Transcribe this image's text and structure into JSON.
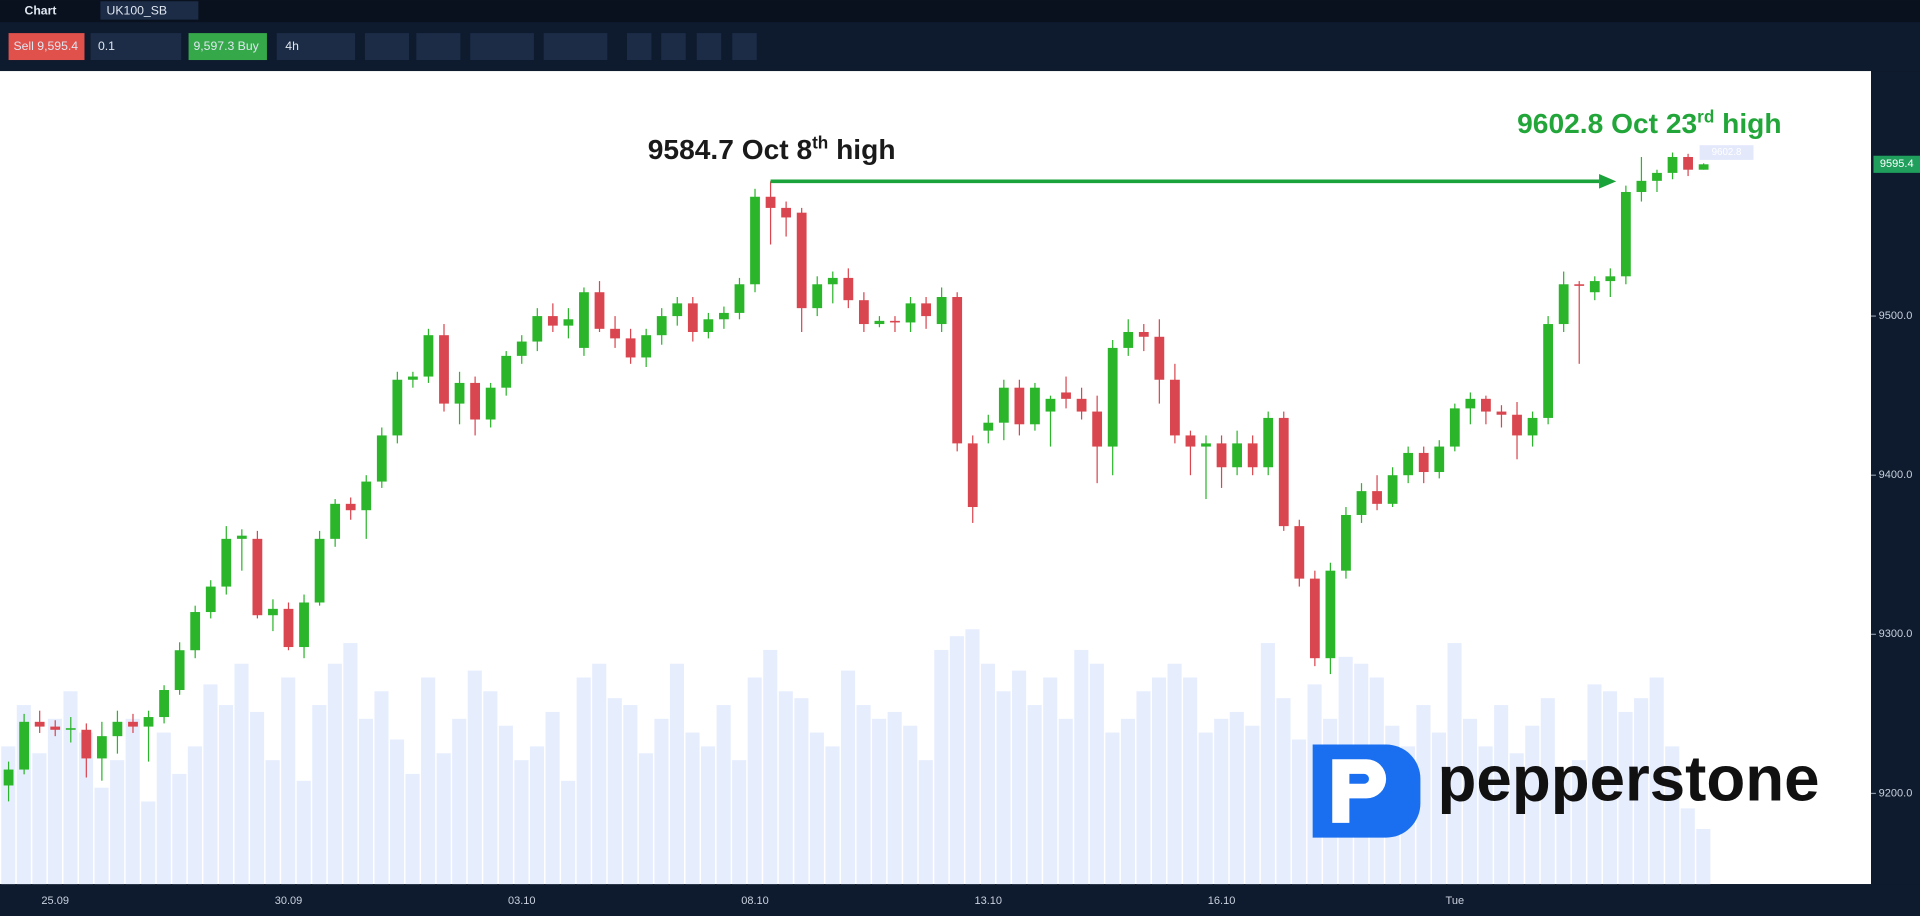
{
  "toolbar": {
    "tab": "Chart",
    "symbol": "UK100_SB",
    "sell": "Sell 9,595.4",
    "quantity": "0.1",
    "buy": "9,597.3 Buy",
    "timeframe": "4h"
  },
  "chart_data": {
    "type": "candlestick",
    "up_color": "#2bb52b",
    "down_color": "#d9464f",
    "volume_color": "#e6edfd",
    "categories": [
      null,
      null,
      null,
      "25.09",
      null,
      null,
      null,
      null,
      null,
      null,
      null,
      null,
      null,
      null,
      null,
      null,
      null,
      null,
      "30.09",
      null,
      null,
      null,
      null,
      null,
      null,
      null,
      null,
      null,
      null,
      null,
      null,
      null,
      null,
      "03.10",
      null,
      null,
      null,
      null,
      null,
      null,
      null,
      null,
      null,
      null,
      null,
      null,
      null,
      null,
      "08.10",
      null,
      null,
      null,
      null,
      null,
      null,
      null,
      null,
      null,
      null,
      null,
      null,
      null,
      null,
      "13.10",
      null,
      null,
      null,
      null,
      null,
      null,
      null,
      null,
      null,
      null,
      null,
      null,
      null,
      null,
      "16.10",
      null,
      null,
      null,
      null,
      null,
      null,
      null,
      null,
      null,
      null,
      null,
      null,
      null,
      null,
      "Tue",
      null,
      null,
      null,
      null,
      null,
      null,
      null,
      null,
      null,
      null,
      null,
      null,
      null,
      null,
      null,
      null
    ],
    "ohlc": [
      [
        9205,
        9220,
        9195,
        9215
      ],
      [
        9215,
        9250,
        9212,
        9245
      ],
      [
        9245,
        9252,
        9238,
        9242
      ],
      [
        9242,
        9246,
        9236,
        9240
      ],
      [
        9240,
        9248,
        9232,
        9241
      ],
      [
        9240,
        9244,
        9210,
        9222
      ],
      [
        9222,
        9245,
        9208,
        9236
      ],
      [
        9236,
        9252,
        9225,
        9245
      ],
      [
        9245,
        9250,
        9238,
        9242
      ],
      [
        9242,
        9252,
        9220,
        9248
      ],
      [
        9248,
        9268,
        9244,
        9265
      ],
      [
        9265,
        9295,
        9262,
        9290
      ],
      [
        9290,
        9318,
        9285,
        9314
      ],
      [
        9314,
        9334,
        9310,
        9330
      ],
      [
        9330,
        9368,
        9325,
        9360
      ],
      [
        9360,
        9366,
        9340,
        9362
      ],
      [
        9360,
        9365,
        9310,
        9312
      ],
      [
        9312,
        9322,
        9302,
        9316
      ],
      [
        9316,
        9320,
        9290,
        9292
      ],
      [
        9292,
        9325,
        9285,
        9320
      ],
      [
        9320,
        9365,
        9318,
        9360
      ],
      [
        9360,
        9385,
        9355,
        9382
      ],
      [
        9382,
        9386,
        9372,
        9378
      ],
      [
        9378,
        9400,
        9360,
        9396
      ],
      [
        9396,
        9430,
        9392,
        9425
      ],
      [
        9425,
        9465,
        9420,
        9460
      ],
      [
        9460,
        9465,
        9455,
        9462
      ],
      [
        9462,
        9492,
        9458,
        9488
      ],
      [
        9488,
        9495,
        9440,
        9445
      ],
      [
        9445,
        9465,
        9432,
        9458
      ],
      [
        9458,
        9462,
        9425,
        9435
      ],
      [
        9435,
        9458,
        9430,
        9455
      ],
      [
        9455,
        9478,
        9450,
        9475
      ],
      [
        9475,
        9488,
        9470,
        9484
      ],
      [
        9484,
        9505,
        9478,
        9500
      ],
      [
        9500,
        9508,
        9490,
        9494
      ],
      [
        9494,
        9505,
        9486,
        9498
      ],
      [
        9480,
        9518,
        9475,
        9515
      ],
      [
        9515,
        9522,
        9490,
        9492
      ],
      [
        9492,
        9500,
        9480,
        9486
      ],
      [
        9486,
        9492,
        9470,
        9474
      ],
      [
        9474,
        9492,
        9468,
        9488
      ],
      [
        9488,
        9505,
        9482,
        9500
      ],
      [
        9500,
        9512,
        9494,
        9508
      ],
      [
        9508,
        9512,
        9484,
        9490
      ],
      [
        9490,
        9502,
        9486,
        9498
      ],
      [
        9498,
        9506,
        9492,
        9502
      ],
      [
        9502,
        9524,
        9498,
        9520
      ],
      [
        9520,
        9580,
        9515,
        9575
      ],
      [
        9575,
        9584.7,
        9545,
        9568
      ],
      [
        9568,
        9572,
        9550,
        9562
      ],
      [
        9565,
        9568,
        9490,
        9505
      ],
      [
        9505,
        9525,
        9500,
        9520
      ],
      [
        9520,
        9528,
        9508,
        9524
      ],
      [
        9524,
        9530,
        9505,
        9510
      ],
      [
        9510,
        9515,
        9490,
        9495
      ],
      [
        9495,
        9500,
        9493,
        9497
      ],
      [
        9497,
        9500,
        9490,
        9496
      ],
      [
        9496,
        9512,
        9490,
        9508
      ],
      [
        9508,
        9512,
        9492,
        9500
      ],
      [
        9495,
        9518,
        9490,
        9512
      ],
      [
        9512,
        9515,
        9415,
        9420
      ],
      [
        9420,
        9425,
        9370,
        9380
      ],
      [
        9428,
        9438,
        9420,
        9433
      ],
      [
        9433,
        9460,
        9422,
        9455
      ],
      [
        9455,
        9460,
        9425,
        9432
      ],
      [
        9432,
        9458,
        9428,
        9455
      ],
      [
        9440,
        9450,
        9418,
        9448
      ],
      [
        9452,
        9462,
        9442,
        9448
      ],
      [
        9448,
        9455,
        9435,
        9440
      ],
      [
        9440,
        9450,
        9395,
        9418
      ],
      [
        9418,
        9485,
        9400,
        9480
      ],
      [
        9480,
        9498,
        9475,
        9490
      ],
      [
        9490,
        9495,
        9478,
        9487
      ],
      [
        9487,
        9498,
        9445,
        9460
      ],
      [
        9460,
        9470,
        9420,
        9425
      ],
      [
        9425,
        9428,
        9400,
        9418
      ],
      [
        9418,
        9425,
        9385,
        9420
      ],
      [
        9420,
        9425,
        9392,
        9405
      ],
      [
        9405,
        9428,
        9400,
        9420
      ],
      [
        9420,
        9425,
        9400,
        9405
      ],
      [
        9405,
        9440,
        9400,
        9436
      ],
      [
        9436,
        9440,
        9365,
        9368
      ],
      [
        9368,
        9372,
        9330,
        9335
      ],
      [
        9335,
        9340,
        9280,
        9285
      ],
      [
        9285,
        9345,
        9275,
        9340
      ],
      [
        9340,
        9380,
        9335,
        9375
      ],
      [
        9375,
        9395,
        9370,
        9390
      ],
      [
        9390,
        9400,
        9378,
        9382
      ],
      [
        9382,
        9405,
        9380,
        9400
      ],
      [
        9400,
        9418,
        9395,
        9414
      ],
      [
        9414,
        9418,
        9395,
        9402
      ],
      [
        9402,
        9422,
        9398,
        9418
      ],
      [
        9418,
        9445,
        9415,
        9442
      ],
      [
        9442,
        9452,
        9432,
        9448
      ],
      [
        9448,
        9450,
        9432,
        9440
      ],
      [
        9440,
        9444,
        9430,
        9438
      ],
      [
        9438,
        9446,
        9410,
        9425
      ],
      [
        9425,
        9440,
        9418,
        9436
      ],
      [
        9436,
        9500,
        9432,
        9495
      ],
      [
        9495,
        9528,
        9490,
        9520
      ],
      [
        9520,
        9522,
        9470,
        9519
      ],
      [
        9515,
        9525,
        9510,
        9522
      ],
      [
        9522,
        9530,
        9512,
        9525
      ],
      [
        9525,
        9582,
        9520,
        9578
      ],
      [
        9578,
        9600,
        9572,
        9585
      ],
      [
        9585,
        9592,
        9578,
        9590
      ],
      [
        9590,
        9602.8,
        9586,
        9600
      ],
      [
        9600,
        9602,
        9588,
        9592
      ],
      [
        9592,
        9596,
        9592,
        9595.4
      ]
    ],
    "volume": [
      100,
      130,
      95,
      120,
      140,
      110,
      70,
      90,
      120,
      60,
      110,
      80,
      100,
      145,
      130,
      160,
      125,
      90,
      150,
      75,
      130,
      160,
      175,
      120,
      140,
      105,
      80,
      150,
      95,
      120,
      155,
      140,
      115,
      90,
      100,
      125,
      75,
      150,
      160,
      135,
      130,
      95,
      120,
      160,
      110,
      100,
      130,
      90,
      150,
      170,
      140,
      135,
      110,
      100,
      155,
      130,
      120,
      125,
      115,
      90,
      170,
      180,
      185,
      160,
      140,
      155,
      130,
      150,
      120,
      170,
      160,
      110,
      120,
      140,
      150,
      160,
      150,
      110,
      120,
      125,
      115,
      175,
      135,
      105,
      145,
      120,
      165,
      160,
      150,
      115,
      100,
      130,
      110,
      175,
      120,
      100,
      130,
      95,
      115,
      135,
      80,
      90,
      145,
      140,
      125,
      135,
      150,
      100,
      55,
      40
    ],
    "ylim": [
      9143,
      9654
    ],
    "yticks": [
      {
        "value": 9500,
        "label": "9500.0"
      },
      {
        "value": 9400,
        "label": "9400.0"
      },
      {
        "value": 9300,
        "label": "9300.0"
      },
      {
        "value": 9200,
        "label": "9200.0"
      }
    ],
    "last_price": {
      "value": 9595.4,
      "label": "9595.4"
    },
    "annotations": [
      {
        "parts": [
          "9584.7 Oct 8",
          "th",
          " high"
        ],
        "value": 9584.7,
        "color": "#1a1a1a"
      },
      {
        "parts": [
          "9602.8 Oct 23",
          "rd",
          " high"
        ],
        "value": 9602.8,
        "color": "#22a63a"
      }
    ],
    "arrow_color": "#1aa33a",
    "watermark": "pepperstone"
  }
}
